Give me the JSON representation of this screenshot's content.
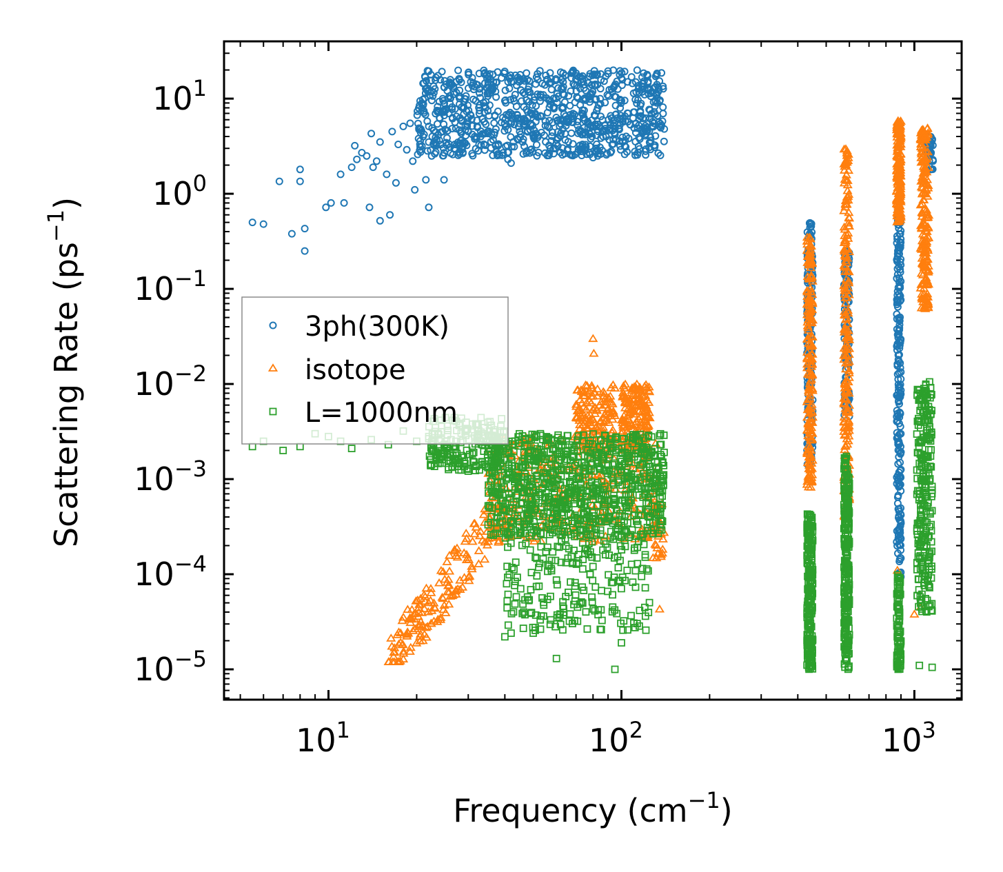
{
  "chart_data": {
    "type": "scatter",
    "xscale": "log",
    "yscale": "log",
    "xlim": [
      4.4,
      1450
    ],
    "ylim": [
      4.8e-06,
      40
    ],
    "xlabel": {
      "text": "Frequency (cm",
      "sup": "−1",
      "tail": ")"
    },
    "ylabel": {
      "text": "Scattering Rate (ps",
      "sup": "−1",
      "tail": ")"
    },
    "xticks": [
      {
        "value": 10,
        "base": "10",
        "exp": "1"
      },
      {
        "value": 100,
        "base": "10",
        "exp": "2"
      },
      {
        "value": 1000,
        "base": "10",
        "exp": "3"
      }
    ],
    "yticks": [
      {
        "value": 1e-05,
        "base": "10",
        "exp": "−5"
      },
      {
        "value": 0.0001,
        "base": "10",
        "exp": "−4"
      },
      {
        "value": 0.001,
        "base": "10",
        "exp": "−3"
      },
      {
        "value": 0.01,
        "base": "10",
        "exp": "−2"
      },
      {
        "value": 0.1,
        "base": "10",
        "exp": "−1"
      },
      {
        "value": 1,
        "base": "10",
        "exp": "0"
      },
      {
        "value": 10,
        "base": "10",
        "exp": "1"
      }
    ],
    "legend": {
      "location": "center-left"
    },
    "series": [
      {
        "name": "3ph(300K)",
        "color": "#1f77b4",
        "marker": "circle",
        "points": [
          [
            5.5,
            0.5
          ],
          [
            6,
            0.48
          ],
          [
            6.8,
            1.35
          ],
          [
            7.5,
            0.38
          ],
          [
            8,
            1.8
          ],
          [
            8,
            1.35
          ],
          [
            8.3,
            0.43
          ],
          [
            8.3,
            0.25
          ],
          [
            9.8,
            0.72
          ],
          [
            10.2,
            0.8
          ],
          [
            11,
            1.6
          ],
          [
            11.3,
            0.8
          ],
          [
            12,
            1.9
          ],
          [
            12.3,
            3.2
          ],
          [
            12.5,
            2.3
          ],
          [
            13,
            2.7
          ],
          [
            13.5,
            2.5
          ],
          [
            13.8,
            0.72
          ],
          [
            14,
            4.3
          ],
          [
            14.2,
            1.9
          ],
          [
            14.6,
            2.2
          ],
          [
            15,
            3.5
          ],
          [
            15,
            0.52
          ],
          [
            15.8,
            1.6
          ],
          [
            16.2,
            0.6
          ],
          [
            16.5,
            4.5
          ],
          [
            17,
            1.3
          ],
          [
            17.3,
            3.3
          ],
          [
            18,
            5.1
          ],
          [
            18.5,
            2.9
          ],
          [
            19,
            5.5
          ],
          [
            19.4,
            2.2
          ],
          [
            19.7,
            1.1
          ],
          [
            20.3,
            3.8
          ],
          [
            21.2,
            4.2
          ],
          [
            21.5,
            1.4
          ],
          [
            22,
            0.72
          ],
          [
            22.5,
            2.5
          ],
          [
            23.2,
            3.9
          ],
          [
            24,
            6.2
          ],
          [
            24.8,
            1.4
          ],
          [
            25.5,
            4.6
          ],
          [
            26.5,
            6.3
          ],
          [
            27,
            3.3
          ],
          [
            28.5,
            5.8
          ],
          [
            30,
            4.5
          ],
          [
            32,
            3.8
          ],
          [
            34,
            5.7
          ],
          [
            36,
            4.2
          ],
          [
            38,
            3.3
          ],
          [
            40,
            9.5
          ],
          [
            41,
            2.3
          ],
          [
            42,
            2.1
          ],
          [
            44,
            6.8
          ],
          [
            46,
            3.5
          ],
          [
            48,
            12.5
          ],
          [
            50,
            4.1
          ],
          [
            55,
            5.2
          ],
          [
            60,
            3.7
          ],
          [
            65,
            6.1
          ],
          [
            70,
            18.5
          ],
          [
            75,
            4.4
          ],
          [
            80,
            2.4
          ],
          [
            82,
            3.0
          ],
          [
            85,
            6.5
          ],
          [
            90,
            19.5
          ],
          [
            95,
            4.2
          ],
          [
            100,
            9.5
          ],
          [
            105,
            15
          ],
          [
            110,
            7.2
          ],
          [
            120,
            11
          ],
          [
            125,
            6.2
          ],
          [
            135,
            5.1
          ],
          [
            140,
            4.8
          ]
        ],
        "bands": [
          {
            "x": [
              20,
              140
            ],
            "y": [
              2.5,
              20
            ],
            "count": 900
          },
          {
            "x": [
              430,
              450
            ],
            "y": [
              0.0014,
              0.5
            ],
            "count": 180
          },
          {
            "x": [
              575,
              600
            ],
            "y": [
              0.0045,
              0.25
            ],
            "count": 120
          },
          {
            "x": [
              870,
              900
            ],
            "y": [
              9e-05,
              0.7
            ],
            "count": 220
          },
          {
            "x": [
              1100,
              1160
            ],
            "y": [
              1.8,
              4
            ],
            "count": 40
          }
        ]
      },
      {
        "name": "isotope",
        "color": "#ff7f0e",
        "marker": "triangle",
        "points": [
          [
            80,
            0.03
          ],
          [
            80.5,
            0.021
          ],
          [
            135,
            4.3e-05
          ],
          [
            430,
            0.00088
          ],
          [
            875,
            0.00011
          ],
          [
            1000,
            3.8e-05
          ],
          [
            1050,
            4.5e-05
          ],
          [
            590,
            0.0005
          ],
          [
            440,
            0.0022
          ]
        ],
        "bands": [
          {
            "x": [
              16,
              40
            ],
            "y": [
              1.2e-05,
              0.0005
            ],
            "count": 180,
            "trend": "rising"
          },
          {
            "x": [
              35,
              135
            ],
            "y": [
              0.00022,
              0.0028
            ],
            "count": 350
          },
          {
            "x": [
              70,
              95
            ],
            "y": [
              0.002,
              0.01
            ],
            "count": 160
          },
          {
            "x": [
              100,
              125
            ],
            "y": [
              0.002,
              0.01
            ],
            "count": 160
          },
          {
            "x": [
              128,
              140
            ],
            "y": [
              0.00014,
              0.0006
            ],
            "count": 25
          },
          {
            "x": [
              430,
              450
            ],
            "y": [
              0.0008,
              0.35
            ],
            "count": 200
          },
          {
            "x": [
              575,
              600
            ],
            "y": [
              0.0004,
              3
            ],
            "count": 220
          },
          {
            "x": [
              870,
              900
            ],
            "y": [
              0.5,
              6
            ],
            "count": 160
          },
          {
            "x": [
              1050,
              1120
            ],
            "y": [
              0.06,
              5
            ],
            "count": 200
          }
        ]
      },
      {
        "name": "L=1000nm",
        "color": "#2ca02c",
        "marker": "square",
        "points": [
          [
            5.5,
            0.0022
          ],
          [
            6,
            0.0025
          ],
          [
            7,
            0.002
          ],
          [
            8,
            0.0022
          ],
          [
            9,
            0.003
          ],
          [
            10,
            0.0028
          ],
          [
            11,
            0.0025
          ],
          [
            12,
            0.0021
          ],
          [
            14,
            0.0026
          ],
          [
            16,
            0.0023
          ],
          [
            18,
            0.0032
          ],
          [
            20,
            0.0025
          ],
          [
            22,
            0.0028
          ],
          [
            40,
            2.2e-05
          ],
          [
            42,
            2.4e-05
          ],
          [
            50,
            2.4e-05
          ],
          [
            60,
            1.3e-05
          ],
          [
            95,
            1e-05
          ],
          [
            100,
            1.9e-05
          ],
          [
            105,
            2.6e-05
          ],
          [
            1150,
            1.05e-05
          ],
          [
            1040,
            1.1e-05
          ]
        ],
        "bands": [
          {
            "x": [
              22,
              40
            ],
            "y": [
              0.0012,
              0.0045
            ],
            "count": 200
          },
          {
            "x": [
              35,
              140
            ],
            "y": [
              0.00025,
              0.003
            ],
            "count": 900
          },
          {
            "x": [
              40,
              125
            ],
            "y": [
              2.5e-05,
              0.00025
            ],
            "count": 220
          },
          {
            "x": [
              430,
              450
            ],
            "y": [
              1e-05,
              0.00045
            ],
            "count": 220
          },
          {
            "x": [
              575,
              600
            ],
            "y": [
              1e-05,
              0.0018
            ],
            "count": 280
          },
          {
            "x": [
              870,
              900
            ],
            "y": [
              1e-05,
              0.0001
            ],
            "count": 90
          },
          {
            "x": [
              1020,
              1150
            ],
            "y": [
              4e-05,
              0.011
            ],
            "count": 260
          }
        ]
      }
    ]
  }
}
